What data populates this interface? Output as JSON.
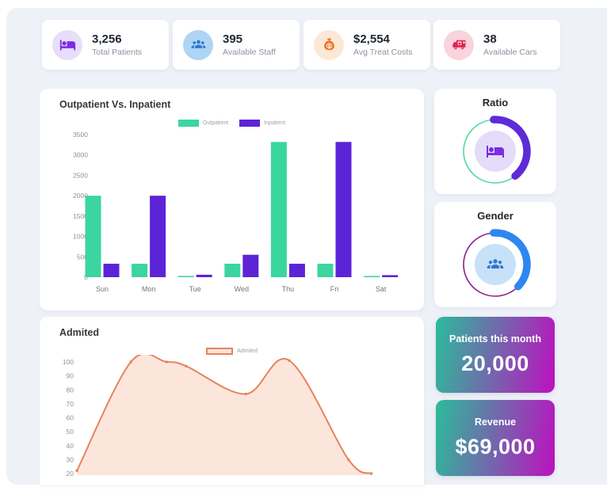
{
  "colors": {
    "background": "#eff1f8"
  },
  "stats": [
    {
      "value": "3,256",
      "label": "Total Patients",
      "icon": "bed-icon",
      "color": "#7b2ee2",
      "bg": "#e6defa"
    },
    {
      "value": "395",
      "label": "Available Staff",
      "icon": "people-icon",
      "color": "#2e78cc",
      "bg": "#aed5f4"
    },
    {
      "value": "$2,554",
      "label": "Avg Treat Costs",
      "icon": "money-bag-icon",
      "color": "#ee7421",
      "bg": "#fbe8d6"
    },
    {
      "value": "38",
      "label": "Available Cars",
      "icon": "ambulance-icon",
      "color": "#e2224c",
      "bg": "#f9d3dd"
    }
  ],
  "chart_data": [
    {
      "type": "bar",
      "title": "Outpatient Vs. Inpatient",
      "categories": [
        "Sun",
        "Mon",
        "Tue",
        "Wed",
        "Thu",
        "Fri",
        "Sat"
      ],
      "series": [
        {
          "name": "Outpatient",
          "color": "#3bd5a0",
          "values": [
            2000,
            330,
            30,
            330,
            3320,
            330,
            30
          ]
        },
        {
          "name": "Inpatient",
          "color": "#5d23d7",
          "values": [
            330,
            2000,
            60,
            550,
            330,
            3320,
            50
          ]
        }
      ],
      "ylim": [
        0,
        3500
      ],
      "yticks": [
        0,
        500,
        1000,
        1500,
        2000,
        2500,
        3000,
        3500
      ],
      "grid": false,
      "legend_position": "top"
    },
    {
      "type": "area",
      "title": "Admited",
      "series": [
        {
          "name": "Admited",
          "color": "#e5845a",
          "fill": "#fce6dc",
          "values": [
            22,
            100,
            100,
            97,
            77,
            101,
            30,
            20
          ],
          "x_frac": [
            0,
            0.165,
            0.274,
            0.334,
            0.516,
            0.649,
            0.83,
            0.9
          ]
        }
      ],
      "ylim": [
        20,
        100
      ],
      "yticks": [
        20,
        30,
        40,
        50,
        60,
        70,
        80,
        90,
        100
      ],
      "grid": false,
      "legend_position": "top"
    }
  ],
  "donuts": [
    {
      "title": "Ratio",
      "ring_color": "#4ed8a4",
      "arc_color": "#5d2bd8",
      "arc_percent": 40,
      "icon": "bed-icon",
      "icon_color": "#7b2ee2",
      "icon_bg": "#e4dcf8"
    },
    {
      "title": "Gender",
      "ring_color": "#8b1e8b",
      "arc_color": "#2e86f0",
      "arc_percent": 38,
      "icon": "people-icon",
      "icon_color": "#2e78cc",
      "icon_bg": "#c7e1f9"
    }
  ],
  "kpi_cards": [
    {
      "label": "Patients this month",
      "value": "20,000",
      "gradient_start": "#2abd9a",
      "gradient_end": "#bd10bf"
    },
    {
      "label": "Revenue",
      "value": "$69,000",
      "gradient_start": "#2abd9a",
      "gradient_end": "#bd10bf"
    }
  ]
}
